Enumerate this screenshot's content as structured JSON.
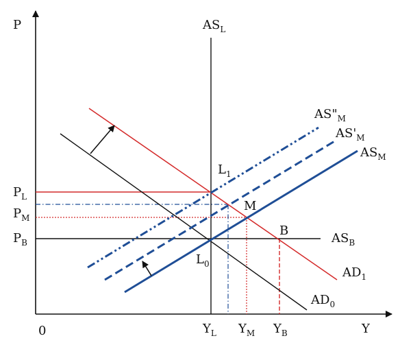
{
  "axes": {
    "y_label": "P",
    "x_label": "Y",
    "origin_label": "0"
  },
  "curves": {
    "as_long": {
      "main": "AS",
      "sub": "L"
    },
    "as_medium": {
      "main": "AS",
      "sub": "M"
    },
    "as_medium_prime": {
      "main": "AS'",
      "sub": "M"
    },
    "as_medium_double_prime": {
      "main": "AS\"",
      "sub": "M"
    },
    "as_short": {
      "main": "AS",
      "sub": "B"
    },
    "ad_initial": {
      "main": "AD",
      "sub": "0"
    },
    "ad_shifted": {
      "main": "AD",
      "sub": "1"
    }
  },
  "points": {
    "l0": {
      "main": "L",
      "sub": "0"
    },
    "l1": {
      "main": "L",
      "sub": "1"
    },
    "m": "M",
    "b": "B"
  },
  "price_levels": {
    "pl": {
      "main": "P",
      "sub": "L"
    },
    "pm": {
      "main": "P",
      "sub": "M"
    },
    "pb": {
      "main": "P",
      "sub": "B"
    }
  },
  "output_levels": {
    "yl": {
      "main": "Y",
      "sub": "L"
    },
    "ym": {
      "main": "Y",
      "sub": "M"
    },
    "yb": {
      "main": "Y",
      "sub": "B"
    }
  },
  "colors": {
    "axis": "#111111",
    "ad_shifted": "#d42a2a",
    "as_medium": "#1f4e96"
  }
}
